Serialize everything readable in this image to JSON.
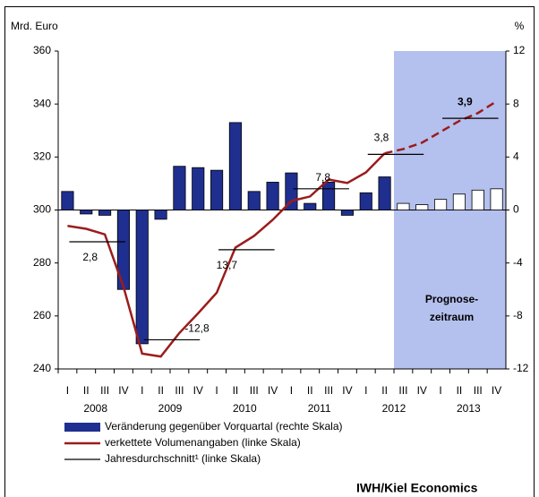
{
  "chart_data": {
    "type": "bar-line",
    "y_label": "Mrd. Euro",
    "y2_label": "%",
    "categories": [
      "I",
      "II",
      "III",
      "IV",
      "I",
      "II",
      "III",
      "IV",
      "I",
      "II",
      "III",
      "IV",
      "I",
      "II",
      "III",
      "IV",
      "I",
      "II",
      "III",
      "IV",
      "I",
      "II",
      "III",
      "IV"
    ],
    "years": [
      "2008",
      "2009",
      "2010",
      "2011",
      "2012",
      "2013"
    ],
    "ylim": [
      240,
      360
    ],
    "yticks": [
      240,
      260,
      280,
      300,
      320,
      340,
      360
    ],
    "y2lim": [
      -12,
      12
    ],
    "y2ticks": [
      -12,
      -8,
      -4,
      0,
      4,
      8,
      12
    ],
    "forecast": {
      "from": 18,
      "color": "#b4c0ee",
      "label": [
        "Prognose-",
        "zeitraum"
      ]
    },
    "series": [
      {
        "name": "Veränderung gegenüber Vorquartal (rechte Skala)",
        "type": "bar",
        "axis": "y2",
        "color": "#1f2f8f",
        "forecast_color": "#ffffff",
        "values": [
          1.4,
          -0.3,
          -0.4,
          -6.0,
          -10.1,
          -0.7,
          3.3,
          3.2,
          3.0,
          6.6,
          1.4,
          2.1,
          2.8,
          0.5,
          2.1,
          -0.4,
          1.3,
          2.5,
          0.5,
          0.4,
          0.8,
          1.2,
          1.5,
          1.6
        ]
      },
      {
        "name": "verkettete Volumenangaben (linke Skala)",
        "type": "line",
        "color": "#9b1c1c",
        "values": [
          294,
          292.9,
          290.8,
          271,
          245.8,
          244.7,
          253.6,
          261,
          268.8,
          285.8,
          290.2,
          296.3,
          303.4,
          305.1,
          311.5,
          310.2,
          314.2,
          321.4,
          323,
          325.4,
          329.5,
          333.6,
          336.6,
          341
        ]
      }
    ],
    "annual": {
      "name": "Jahresdurchschnitt¹ (linke Skala)",
      "color": "#000000",
      "values": [
        288,
        251,
        285,
        308,
        321,
        334.6
      ],
      "annotations": [
        "2,8",
        "-12,8",
        "13,7",
        "7,8",
        "3,8",
        "3,9"
      ]
    },
    "source": "IWH/Kiel Economics"
  }
}
